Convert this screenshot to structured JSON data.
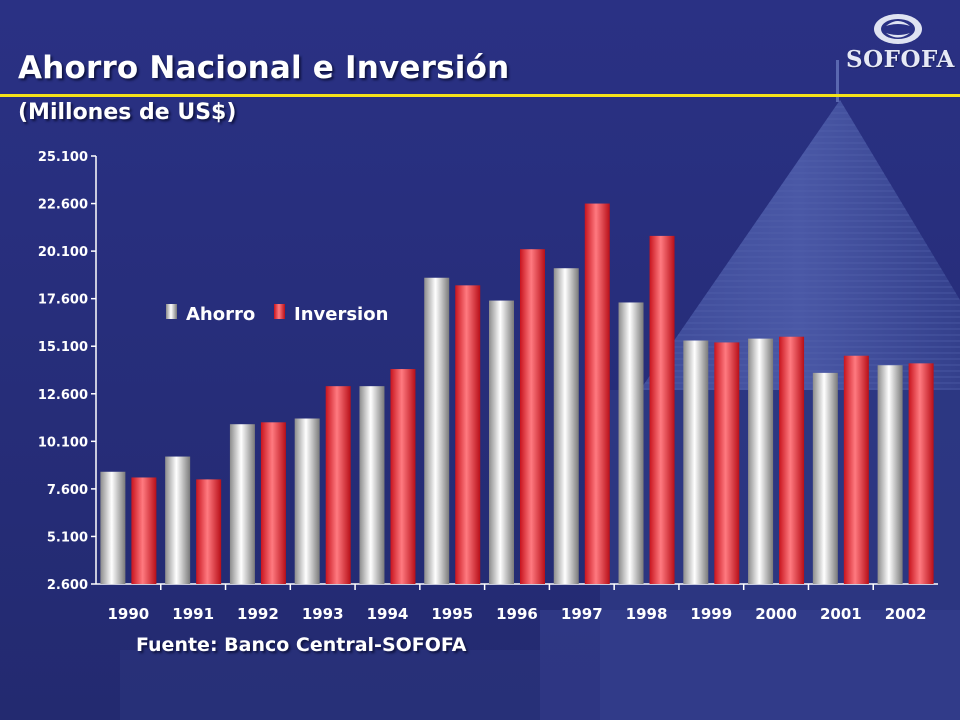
{
  "slide": {
    "title": "Ahorro Nacional e Inversión",
    "subtitle": "(Millones de US$)",
    "source": "Fuente: Banco Central-SOFOFA",
    "logo_text": "SOFOFA",
    "colors": {
      "background": "#262d7a",
      "accent_rule": "#f4e21a",
      "ahorro_bar": "#d9d9d9",
      "inversion_bar": "#ff3b46"
    }
  },
  "chart_data": {
    "type": "bar",
    "categories": [
      "1990",
      "1991",
      "1992",
      "1993",
      "1994",
      "1995",
      "1996",
      "1997",
      "1998",
      "1999",
      "2000",
      "2001",
      "2002"
    ],
    "series": [
      {
        "name": "Ahorro",
        "values": [
          8500,
          9300,
          11000,
          11300,
          13000,
          18700,
          17500,
          19200,
          17400,
          15400,
          15500,
          13700,
          14100
        ],
        "color": "#d9d9d9"
      },
      {
        "name": "Inversion",
        "values": [
          8200,
          8100,
          11100,
          13000,
          13900,
          18300,
          20200,
          22600,
          20900,
          15300,
          15600,
          14600,
          14200
        ],
        "color": "#ff3b46"
      }
    ],
    "yticks": [
      2600,
      5100,
      7600,
      10100,
      12600,
      15100,
      17600,
      20100,
      22600,
      25100
    ],
    "ytick_labels": [
      "2.600",
      "5.100",
      "7.600",
      "10.100",
      "12.600",
      "15.100",
      "17.600",
      "20.100",
      "22.600",
      "25.100"
    ],
    "ylim": [
      2600,
      25100
    ],
    "grid": false,
    "legend": "upper-left"
  }
}
